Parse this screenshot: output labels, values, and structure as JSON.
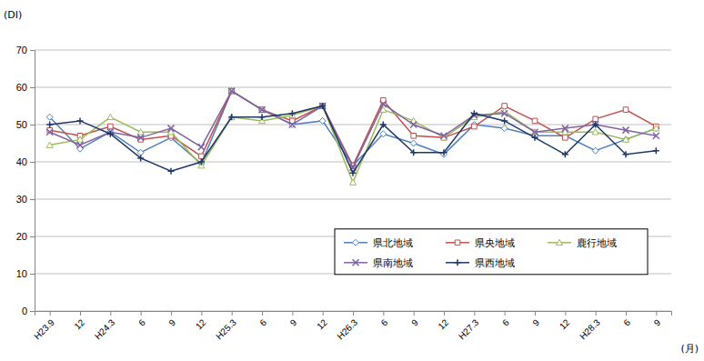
{
  "chart_data": {
    "type": "line",
    "y_label": "(DI)",
    "x_label": "(月)",
    "categories": [
      "H23.9",
      "12",
      "H24.3",
      "6",
      "9",
      "12",
      "H25.3",
      "6",
      "9",
      "12",
      "H26.3",
      "6",
      "9",
      "12",
      "H27.3",
      "6",
      "9",
      "12",
      "H28.3",
      "6",
      "9"
    ],
    "ylim": [
      0,
      70
    ],
    "yticks": [
      0,
      10,
      20,
      30,
      40,
      50,
      60,
      70
    ],
    "grid": true,
    "legend": "lower right",
    "series": [
      {
        "name": "県北地域",
        "color": "#4f81bd",
        "marker": "diamond",
        "values": [
          52,
          43.5,
          48,
          42.5,
          46.5,
          39.5,
          59,
          54,
          50,
          51,
          39,
          47.5,
          45,
          42,
          50,
          49,
          47,
          47,
          43,
          46,
          49
        ]
      },
      {
        "name": "県央地域",
        "color": "#c0504d",
        "marker": "square",
        "values": [
          48.5,
          47,
          49.5,
          46,
          47,
          41.5,
          59,
          54,
          51,
          55,
          39,
          56.5,
          47,
          46.5,
          49.5,
          55,
          51,
          46.5,
          51.5,
          54,
          49.5
        ]
      },
      {
        "name": "鹿行地域",
        "color": "#9bbb59",
        "marker": "triangle",
        "values": [
          44.5,
          46,
          52,
          48,
          48,
          39,
          52,
          51,
          52.5,
          55,
          34.5,
          54,
          51,
          46.5,
          52,
          53.5,
          48,
          48,
          48,
          46,
          49
        ]
      },
      {
        "name": "県南地域",
        "color": "#8064a2",
        "marker": "x",
        "values": [
          48,
          44.5,
          48,
          46.5,
          49,
          44,
          59,
          54,
          50,
          55,
          38.5,
          55.5,
          50,
          47,
          52.5,
          53,
          48,
          49,
          50,
          48.5,
          47
        ]
      },
      {
        "name": "県西地域",
        "color": "#1f3864",
        "marker": "plus",
        "values": [
          50,
          51,
          47.5,
          41,
          37.5,
          40,
          52,
          52,
          53,
          55,
          37,
          50,
          42.5,
          42.5,
          53,
          51,
          46.5,
          42,
          50,
          42,
          43
        ]
      }
    ]
  }
}
